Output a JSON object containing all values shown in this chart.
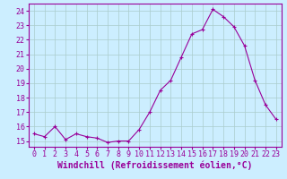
{
  "x": [
    0,
    1,
    2,
    3,
    4,
    5,
    6,
    7,
    8,
    9,
    10,
    11,
    12,
    13,
    14,
    15,
    16,
    17,
    18,
    19,
    20,
    21,
    22,
    23
  ],
  "y": [
    15.5,
    15.3,
    16.0,
    15.1,
    15.5,
    15.3,
    15.2,
    14.9,
    15.0,
    15.0,
    15.8,
    17.0,
    18.5,
    19.2,
    20.8,
    22.4,
    22.7,
    24.1,
    23.6,
    22.9,
    21.6,
    19.2,
    17.5,
    16.5
  ],
  "line_color": "#990099",
  "marker": "+",
  "marker_size": 3,
  "marker_linewidth": 0.8,
  "linewidth": 0.8,
  "background_color": "#cceeff",
  "grid_color": "#aacccc",
  "xlabel": "Windchill (Refroidissement éolien,°C)",
  "xlabel_fontsize": 7,
  "ylabel_ticks": [
    15,
    16,
    17,
    18,
    19,
    20,
    21,
    22,
    23,
    24
  ],
  "ylim": [
    14.6,
    24.5
  ],
  "xlim": [
    -0.5,
    23.5
  ],
  "tick_fontsize": 6,
  "axis_label_color": "#990099",
  "tick_label_color": "#990099",
  "spine_color": "#990099"
}
